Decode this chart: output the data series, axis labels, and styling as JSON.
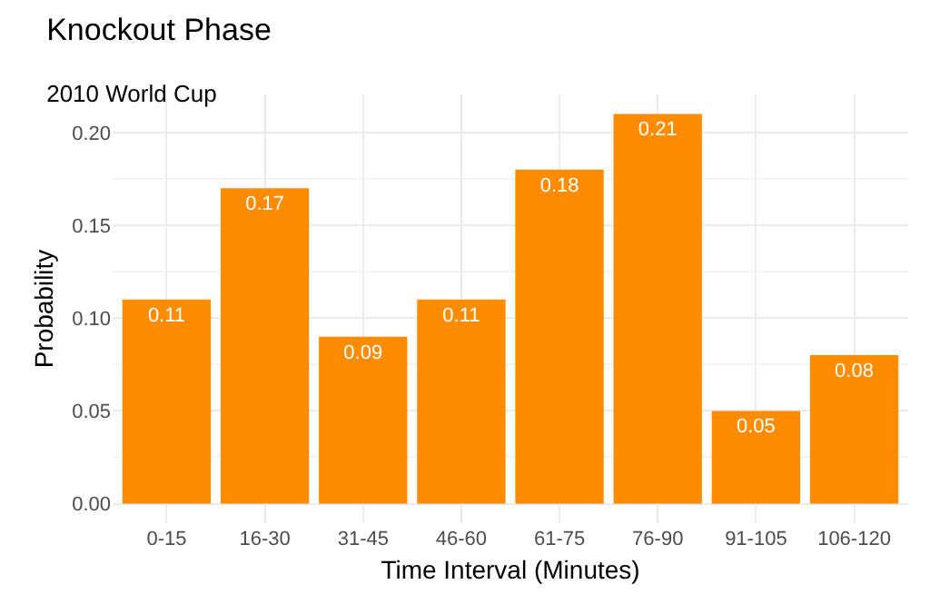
{
  "chart_data": {
    "type": "bar",
    "title": "Knockout Phase",
    "subtitle": "2010 World Cup",
    "xlabel": "Time Interval (Minutes)",
    "ylabel": "Probability",
    "categories": [
      "0-15",
      "16-30",
      "31-45",
      "46-60",
      "61-75",
      "76-90",
      "91-105",
      "106-120"
    ],
    "values": [
      0.11,
      0.17,
      0.09,
      0.11,
      0.18,
      0.21,
      0.05,
      0.08
    ],
    "color": "#ff8c00",
    "data_labels": true,
    "ylim": [
      -0.0105,
      0.2205
    ],
    "yticks": [
      {
        "value": 0,
        "label": "0.00"
      },
      {
        "value": 0.05,
        "label": "0.05"
      },
      {
        "value": 0.1,
        "label": "0.10"
      },
      {
        "value": 0.15,
        "label": "0.15"
      },
      {
        "value": 0.2,
        "label": "0.20"
      }
    ],
    "grid": true
  }
}
